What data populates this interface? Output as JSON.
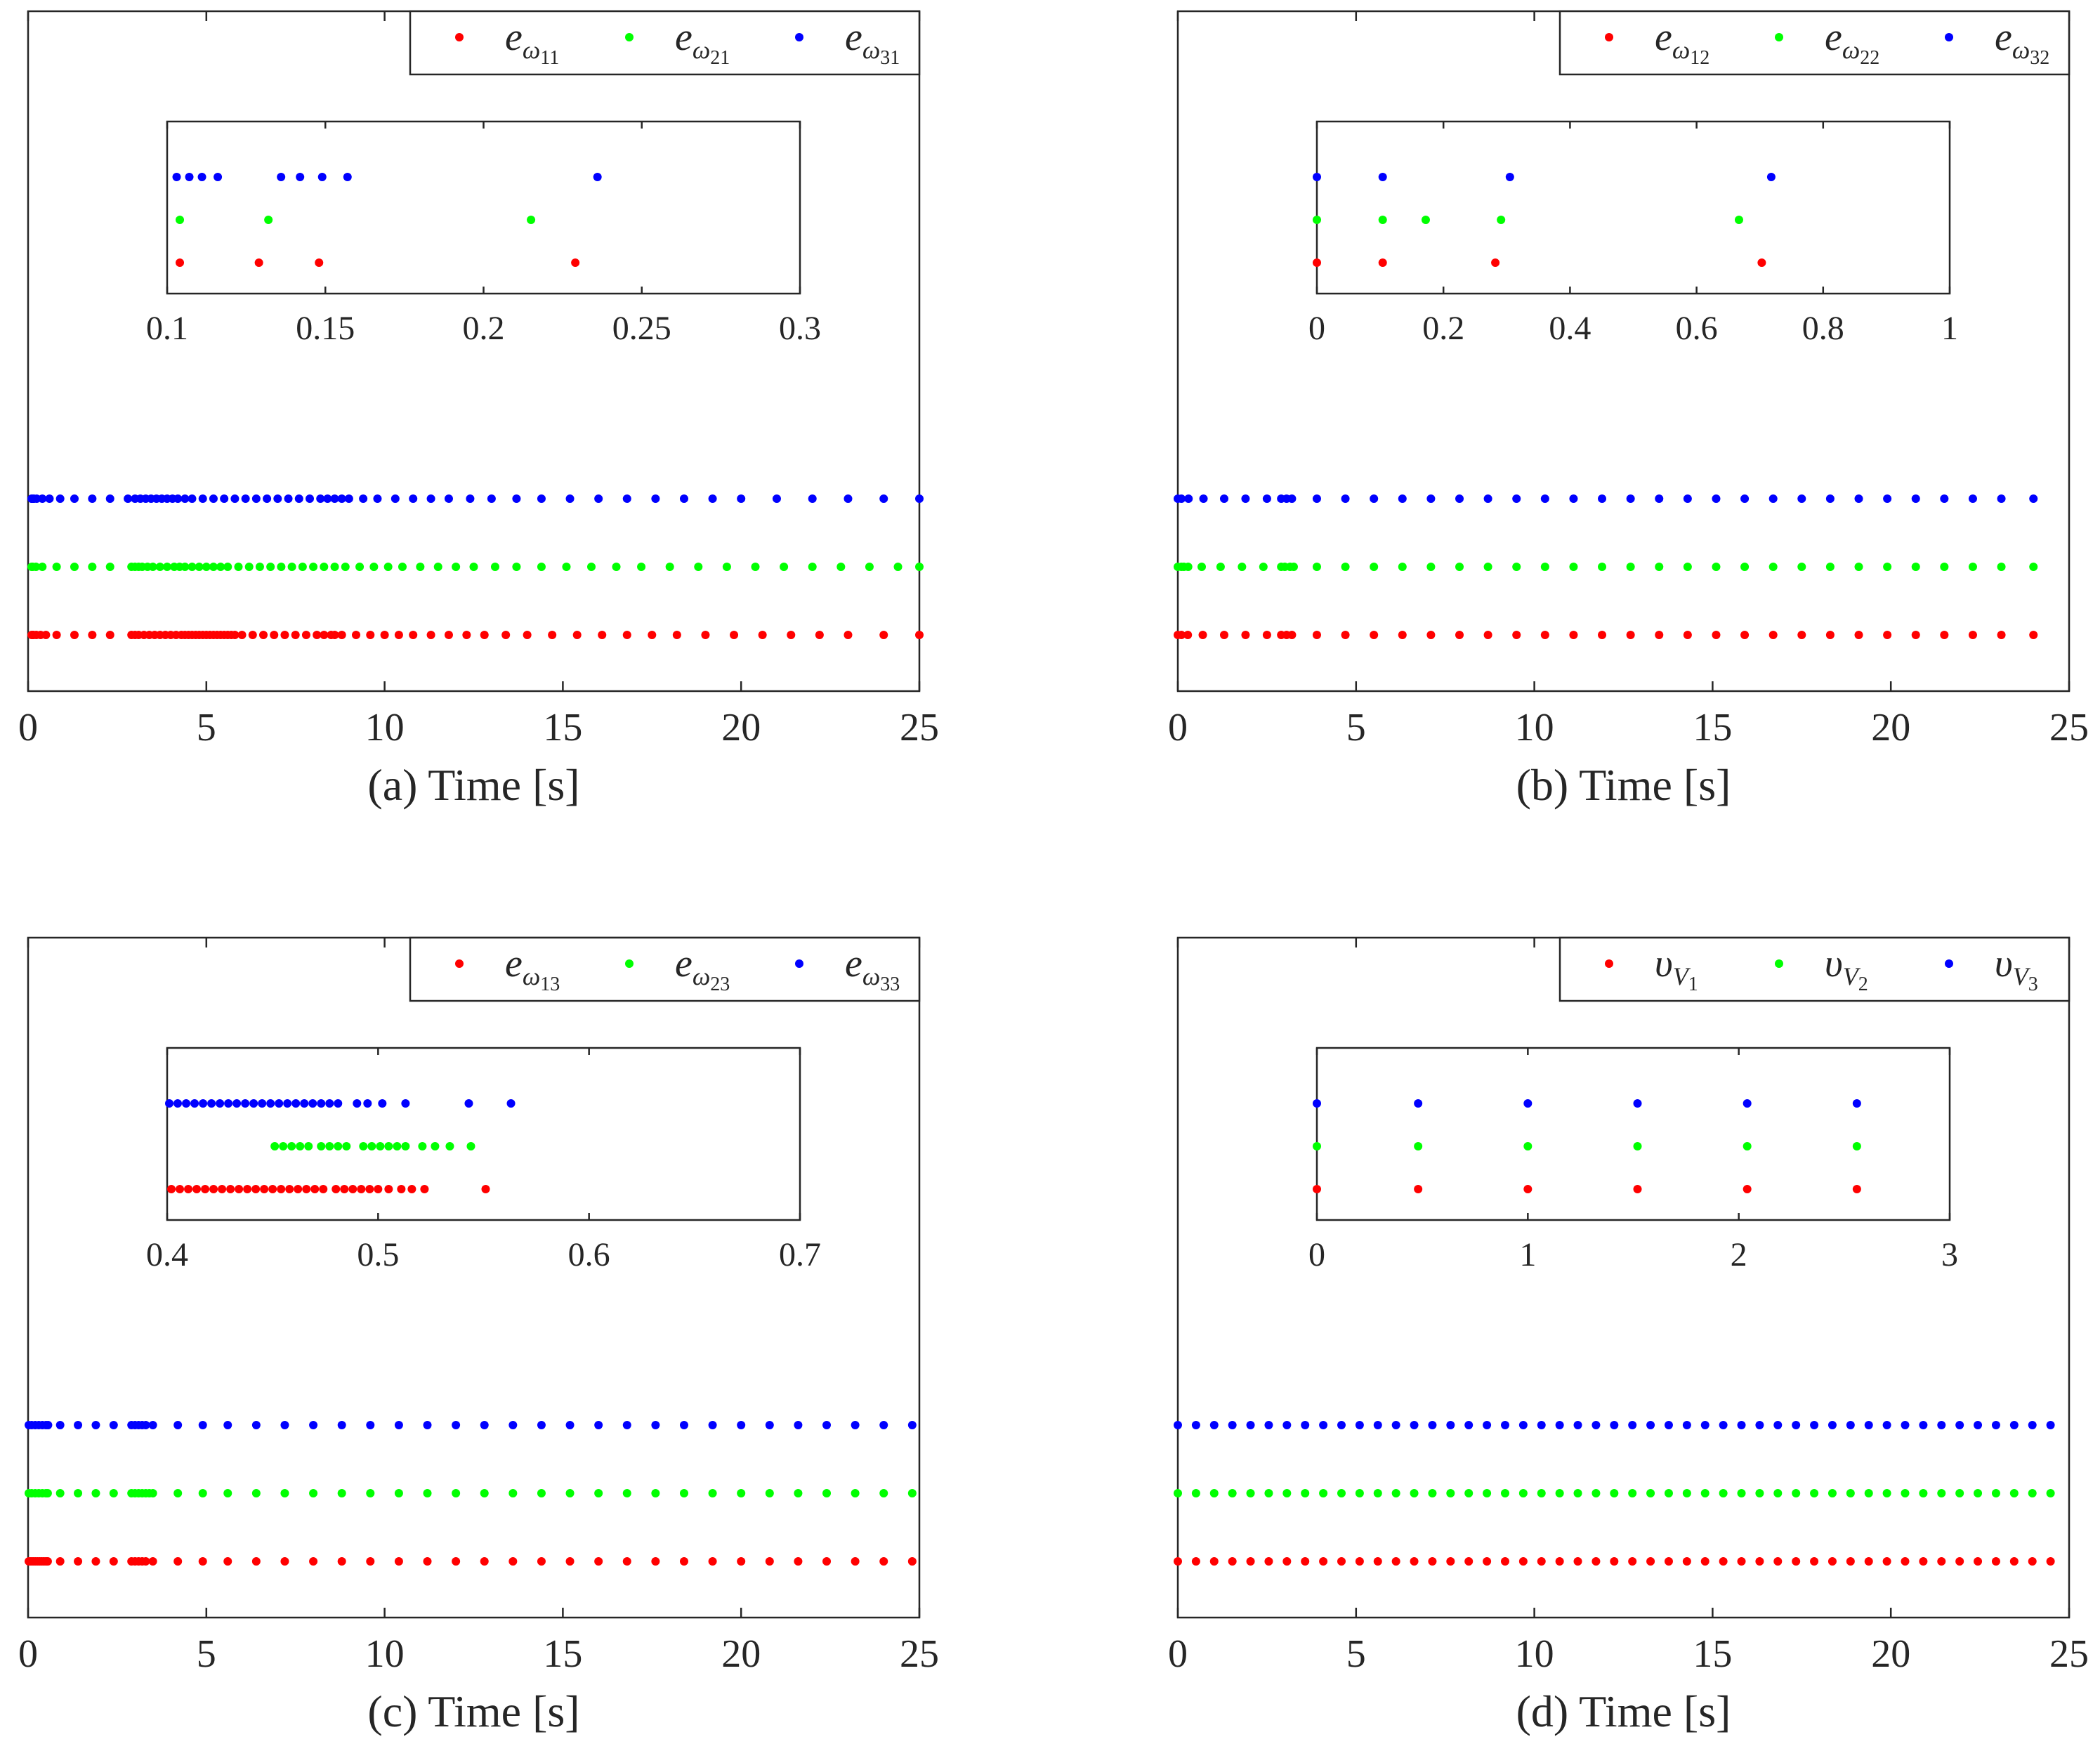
{
  "chart_data": [
    {
      "id": "a",
      "type": "scatter",
      "xlabel": "(a) Time [s]",
      "xlim": [
        0,
        25
      ],
      "xticks": [
        0,
        5,
        10,
        15,
        20,
        25
      ],
      "legend": {
        "placement": "top-right",
        "entries": [
          {
            "base": "e",
            "sub": "ω",
            "subsub": "11",
            "color": "#ff0000"
          },
          {
            "base": "e",
            "sub": "ω",
            "subsub": "21",
            "color": "#00ff00"
          },
          {
            "base": "e",
            "sub": "ω",
            "subsub": "31",
            "color": "#0000ff"
          }
        ]
      },
      "series": [
        {
          "name": "e_ω11",
          "color": "#ff0000",
          "level": 1,
          "x": [
            0.1,
            0.13,
            0.15,
            0.23,
            0.35,
            0.5,
            0.8,
            1.3,
            1.8,
            2.3,
            2.9,
            3.0,
            3.1,
            3.25,
            3.4,
            3.55,
            3.7,
            3.85,
            4.0,
            4.15,
            4.3,
            4.4,
            4.5,
            4.6,
            4.7,
            4.8,
            4.9,
            5.0,
            5.1,
            5.2,
            5.3,
            5.4,
            5.5,
            5.6,
            5.7,
            5.8,
            6.0,
            6.3,
            6.6,
            6.9,
            7.2,
            7.5,
            7.8,
            8.1,
            8.3,
            8.5,
            8.6,
            8.8,
            9.2,
            9.6,
            10.0,
            10.4,
            10.8,
            11.3,
            11.8,
            12.3,
            12.8,
            13.4,
            14.0,
            14.7,
            15.4,
            16.1,
            16.8,
            17.5,
            18.2,
            19.0,
            19.8,
            20.6,
            21.4,
            22.2,
            23.0,
            24.0,
            25.0
          ]
        },
        {
          "name": "e_ω21",
          "color": "#00ff00",
          "level": 2,
          "x": [
            0.1,
            0.13,
            0.22,
            0.4,
            0.8,
            1.3,
            1.8,
            2.3,
            2.9,
            3.0,
            3.1,
            3.2,
            3.35,
            3.5,
            3.7,
            3.9,
            4.1,
            4.25,
            4.4,
            4.6,
            4.8,
            5.0,
            5.2,
            5.4,
            5.6,
            5.9,
            6.2,
            6.5,
            6.8,
            7.1,
            7.4,
            7.7,
            8.0,
            8.3,
            8.6,
            8.9,
            9.3,
            9.7,
            10.1,
            10.5,
            11.0,
            11.5,
            12.0,
            12.5,
            13.1,
            13.7,
            14.4,
            15.1,
            15.8,
            16.5,
            17.2,
            18.0,
            18.8,
            19.6,
            20.4,
            21.2,
            22.0,
            22.8,
            23.6,
            24.4,
            25.0
          ]
        },
        {
          "name": "e_ω31",
          "color": "#0000ff",
          "level": 3,
          "x": [
            0.1,
            0.11,
            0.12,
            0.14,
            0.15,
            0.16,
            0.24,
            0.4,
            0.6,
            0.9,
            1.3,
            1.8,
            2.3,
            2.8,
            3.0,
            3.15,
            3.3,
            3.45,
            3.6,
            3.75,
            3.9,
            4.05,
            4.2,
            4.4,
            4.6,
            4.9,
            5.2,
            5.5,
            5.8,
            6.1,
            6.4,
            6.7,
            7.0,
            7.3,
            7.6,
            7.9,
            8.2,
            8.4,
            8.6,
            8.8,
            9.0,
            9.4,
            9.8,
            10.3,
            10.8,
            11.3,
            11.8,
            12.4,
            13.0,
            13.7,
            14.4,
            15.2,
            16.0,
            16.8,
            17.6,
            18.4,
            19.2,
            20.0,
            21.0,
            22.0,
            23.0,
            24.0,
            25.0
          ]
        }
      ],
      "inset": {
        "xlim": [
          0.1,
          0.3
        ],
        "xticks": [
          "0.1",
          "0.15",
          "0.2",
          "0.25",
          "0.3"
        ],
        "series": [
          {
            "color": "#ff0000",
            "level": 1,
            "x": [
              0.104,
              0.129,
              0.148,
              0.229
            ]
          },
          {
            "color": "#00ff00",
            "level": 2,
            "x": [
              0.104,
              0.132,
              0.215
            ]
          },
          {
            "color": "#0000ff",
            "level": 3,
            "x": [
              0.103,
              0.107,
              0.111,
              0.116,
              0.136,
              0.142,
              0.149,
              0.157,
              0.236
            ]
          }
        ]
      }
    },
    {
      "id": "b",
      "type": "scatter",
      "xlabel": "(b) Time [s]",
      "xlim": [
        0,
        25
      ],
      "xticks": [
        0,
        5,
        10,
        15,
        20,
        25
      ],
      "legend": {
        "placement": "top-right",
        "entries": [
          {
            "base": "e",
            "sub": "ω",
            "subsub": "12",
            "color": "#ff0000"
          },
          {
            "base": "e",
            "sub": "ω",
            "subsub": "22",
            "color": "#00ff00"
          },
          {
            "base": "e",
            "sub": "ω",
            "subsub": "32",
            "color": "#0000ff"
          }
        ]
      },
      "series": [
        {
          "name": "e_ω12",
          "color": "#ff0000",
          "level": 1,
          "x": [
            0.0,
            0.1,
            0.28,
            0.7,
            1.3,
            1.9,
            2.5,
            2.9,
            3.05,
            3.2,
            3.9,
            4.7,
            5.5,
            6.3,
            7.1,
            7.9,
            8.7,
            9.5,
            10.3,
            11.1,
            11.9,
            12.7,
            13.5,
            14.3,
            15.1,
            15.9,
            16.7,
            17.5,
            18.3,
            19.1,
            19.9,
            20.7,
            21.5,
            22.3,
            23.1,
            24.0
          ]
        },
        {
          "name": "e_ω22",
          "color": "#00ff00",
          "level": 2,
          "x": [
            0.0,
            0.1,
            0.17,
            0.29,
            0.67,
            1.2,
            1.8,
            2.4,
            2.9,
            3.0,
            3.15,
            3.25,
            3.9,
            4.7,
            5.5,
            6.3,
            7.1,
            7.9,
            8.7,
            9.5,
            10.3,
            11.1,
            11.9,
            12.7,
            13.5,
            14.3,
            15.1,
            15.9,
            16.7,
            17.5,
            18.3,
            19.1,
            19.9,
            20.7,
            21.5,
            22.3,
            23.1,
            24.0
          ]
        },
        {
          "name": "e_ω32",
          "color": "#0000ff",
          "level": 3,
          "x": [
            0.0,
            0.1,
            0.3,
            0.72,
            1.3,
            1.9,
            2.5,
            2.9,
            3.05,
            3.2,
            3.9,
            4.7,
            5.5,
            6.3,
            7.1,
            7.9,
            8.7,
            9.5,
            10.3,
            11.1,
            11.9,
            12.7,
            13.5,
            14.3,
            15.1,
            15.9,
            16.7,
            17.5,
            18.3,
            19.1,
            19.9,
            20.7,
            21.5,
            22.3,
            23.1,
            24.0
          ]
        }
      ],
      "inset": {
        "xlim": [
          0,
          1
        ],
        "xticks": [
          "0",
          "0.2",
          "0.4",
          "0.6",
          "0.8",
          "1"
        ],
        "series": [
          {
            "color": "#ff0000",
            "level": 1,
            "x": [
              0.0,
              0.104,
              0.282,
              0.703
            ]
          },
          {
            "color": "#00ff00",
            "level": 2,
            "x": [
              0.0,
              0.104,
              0.172,
              0.291,
              0.667
            ]
          },
          {
            "color": "#0000ff",
            "level": 3,
            "x": [
              0.0,
              0.104,
              0.305,
              0.718
            ]
          }
        ]
      }
    },
    {
      "id": "c",
      "type": "scatter",
      "xlabel": "(c) Time [s]",
      "xlim": [
        0,
        25
      ],
      "xticks": [
        0,
        5,
        10,
        15,
        20,
        25
      ],
      "legend": {
        "placement": "top-right",
        "entries": [
          {
            "base": "e",
            "sub": "ω",
            "subsub": "13",
            "color": "#ff0000"
          },
          {
            "base": "e",
            "sub": "ω",
            "subsub": "23",
            "color": "#00ff00"
          },
          {
            "base": "e",
            "sub": "ω",
            "subsub": "33",
            "color": "#0000ff"
          }
        ]
      },
      "series": [
        {
          "name": "e_ω13",
          "color": "#ff0000",
          "level": 1,
          "x": [
            0.02,
            0.08,
            0.14,
            0.2,
            0.26,
            0.32,
            0.38,
            0.44,
            0.5,
            0.55,
            0.9,
            1.4,
            1.9,
            2.4,
            2.9,
            3.0,
            3.1,
            3.2,
            3.3,
            3.5,
            4.2,
            4.9,
            5.6,
            6.4,
            7.2,
            8.0,
            8.8,
            9.6,
            10.4,
            11.2,
            12.0,
            12.8,
            13.6,
            14.4,
            15.2,
            16.0,
            16.8,
            17.6,
            18.4,
            19.2,
            20.0,
            20.8,
            21.6,
            22.4,
            23.2,
            24.0,
            24.8
          ]
        },
        {
          "name": "e_ω23",
          "color": "#00ff00",
          "level": 2,
          "x": [
            0.02,
            0.1,
            0.2,
            0.3,
            0.4,
            0.5,
            0.55,
            0.9,
            1.4,
            1.9,
            2.4,
            2.9,
            3.0,
            3.1,
            3.2,
            3.3,
            3.4,
            3.5,
            4.2,
            4.9,
            5.6,
            6.4,
            7.2,
            8.0,
            8.8,
            9.6,
            10.4,
            11.2,
            12.0,
            12.8,
            13.6,
            14.4,
            15.2,
            16.0,
            16.8,
            17.6,
            18.4,
            19.2,
            20.0,
            20.8,
            21.6,
            22.4,
            23.2,
            24.0,
            24.8
          ]
        },
        {
          "name": "e_ω33",
          "color": "#0000ff",
          "level": 3,
          "x": [
            0.02,
            0.1,
            0.2,
            0.3,
            0.4,
            0.5,
            0.56,
            0.9,
            1.4,
            1.9,
            2.4,
            2.9,
            3.0,
            3.1,
            3.2,
            3.3,
            3.5,
            4.2,
            4.9,
            5.6,
            6.4,
            7.2,
            8.0,
            8.8,
            9.6,
            10.4,
            11.2,
            12.0,
            12.8,
            13.6,
            14.4,
            15.2,
            16.0,
            16.8,
            17.6,
            18.4,
            19.2,
            20.0,
            20.8,
            21.6,
            22.4,
            23.2,
            24.0,
            24.8
          ]
        }
      ],
      "inset": {
        "xlim": [
          0.4,
          0.7
        ],
        "xticks": [
          "0.4",
          "0.5",
          "0.6",
          "0.7"
        ],
        "series": [
          {
            "color": "#ff0000",
            "level": 1,
            "x": [
              0.402,
              0.406,
              0.41,
              0.414,
              0.418,
              0.422,
              0.426,
              0.43,
              0.434,
              0.438,
              0.442,
              0.446,
              0.45,
              0.454,
              0.458,
              0.462,
              0.466,
              0.47,
              0.474,
              0.48,
              0.484,
              0.488,
              0.492,
              0.496,
              0.5,
              0.505,
              0.511,
              0.516,
              0.522,
              0.551
            ]
          },
          {
            "color": "#00ff00",
            "level": 2,
            "x": [
              0.451,
              0.455,
              0.459,
              0.463,
              0.467,
              0.473,
              0.477,
              0.481,
              0.485,
              0.493,
              0.497,
              0.501,
              0.505,
              0.509,
              0.513,
              0.521,
              0.527,
              0.534,
              0.544
            ]
          },
          {
            "color": "#0000ff",
            "level": 3,
            "x": [
              0.401,
              0.405,
              0.409,
              0.413,
              0.417,
              0.421,
              0.425,
              0.429,
              0.433,
              0.437,
              0.441,
              0.445,
              0.449,
              0.453,
              0.457,
              0.461,
              0.465,
              0.469,
              0.473,
              0.477,
              0.481,
              0.49,
              0.495,
              0.502,
              0.513,
              0.543,
              0.563
            ]
          }
        ]
      }
    },
    {
      "id": "d",
      "type": "scatter",
      "xlabel": "(d) Time [s]",
      "xlim": [
        0,
        25
      ],
      "xticks": [
        0,
        5,
        10,
        15,
        20,
        25
      ],
      "legend": {
        "placement": "top-right",
        "entries": [
          {
            "base": "υ",
            "sub": "V",
            "subsub": "1",
            "color": "#ff0000"
          },
          {
            "base": "υ",
            "sub": "V",
            "subsub": "2",
            "color": "#00ff00"
          },
          {
            "base": "υ",
            "sub": "V",
            "subsub": "3",
            "color": "#0000ff"
          }
        ]
      },
      "series": [
        {
          "name": "υ_V1",
          "color": "#ff0000",
          "level": 1,
          "step": 0.51,
          "from": 0.0,
          "to": 24.7
        },
        {
          "name": "υ_V2",
          "color": "#00ff00",
          "level": 2,
          "step": 0.51,
          "from": 0.0,
          "to": 24.7
        },
        {
          "name": "υ_V3",
          "color": "#0000ff",
          "level": 3,
          "step": 0.51,
          "from": 0.0,
          "to": 24.7
        }
      ],
      "inset": {
        "xlim": [
          0,
          3
        ],
        "xticks": [
          "0",
          "1",
          "2",
          "3"
        ],
        "series": [
          {
            "color": "#ff0000",
            "level": 1,
            "x": [
              0.0,
              0.48,
              1.0,
              1.52,
              2.04,
              2.56
            ]
          },
          {
            "color": "#00ff00",
            "level": 2,
            "x": [
              0.0,
              0.48,
              1.0,
              1.52,
              2.04,
              2.56
            ]
          },
          {
            "color": "#0000ff",
            "level": 3,
            "x": [
              0.0,
              0.48,
              1.0,
              1.52,
              2.04,
              2.56
            ]
          }
        ]
      }
    }
  ]
}
